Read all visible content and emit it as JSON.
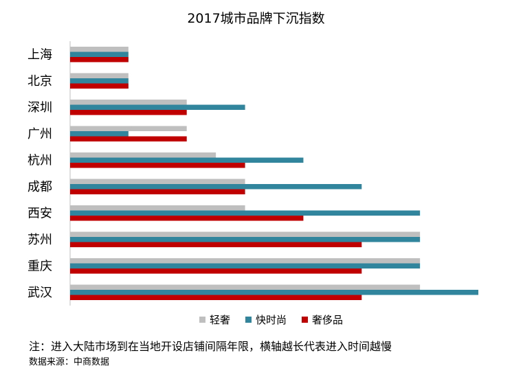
{
  "chart_data": {
    "type": "bar",
    "orientation": "horizontal",
    "title": "2017城市品牌下沉指数",
    "categories": [
      "上海",
      "北京",
      "深圳",
      "广州",
      "杭州",
      "成都",
      "西安",
      "苏州",
      "重庆",
      "武汉"
    ],
    "series": [
      {
        "name": "轻奢",
        "color": "#bfbfbf",
        "values": [
          1,
          1,
          2,
          2,
          2.5,
          3,
          3,
          6,
          6,
          6
        ]
      },
      {
        "name": "快时尚",
        "color": "#31859c",
        "values": [
          1,
          1,
          3,
          1,
          4,
          5,
          6,
          6,
          6,
          7
        ]
      },
      {
        "name": "奢侈品",
        "color": "#c00000",
        "values": [
          1,
          1,
          2,
          2,
          3,
          3,
          4,
          5,
          5,
          5
        ]
      }
    ],
    "xlim": [
      0,
      7
    ],
    "grid": false,
    "legend_position": "bottom"
  },
  "footnote": {
    "note": "注：进入大陆市场到在当地开设店铺间隔年限，横轴越长代表进入时间越慢",
    "source": "数据来源：中商数据"
  }
}
